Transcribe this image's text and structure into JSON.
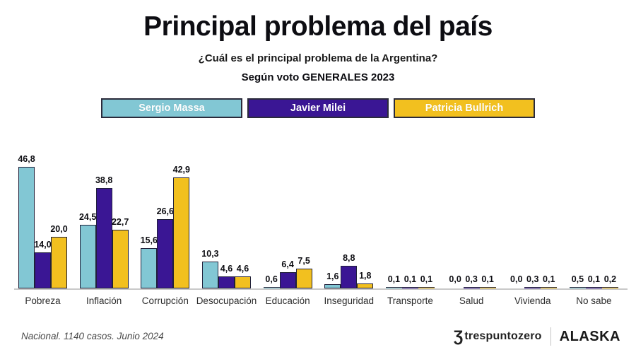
{
  "header": {
    "title": "Principal problema del país",
    "subtitle": "¿Cuál es el principal problema de la Argentina?",
    "filter_label": "Según voto GENERALES 2023"
  },
  "legend": [
    {
      "label": "Sergio Massa",
      "color": "#82c7d4"
    },
    {
      "label": "Javier Milei",
      "color": "#3a1694"
    },
    {
      "label": "Patricia Bullrich",
      "color": "#f2c01f"
    }
  ],
  "chart_data": {
    "type": "bar",
    "title": "Principal problema del país",
    "categories": [
      "Pobreza",
      "Inflación",
      "Corrupción",
      "Desocupación",
      "Educación",
      "Inseguridad",
      "Transporte",
      "Salud",
      "Vivienda",
      "No sabe"
    ],
    "series": [
      {
        "name": "Sergio Massa",
        "color": "#82c7d4",
        "values": [
          46.8,
          24.5,
          15.6,
          10.3,
          0.6,
          1.6,
          0.1,
          0.0,
          0.0,
          0.5
        ]
      },
      {
        "name": "Javier Milei",
        "color": "#3a1694",
        "values": [
          14.0,
          38.8,
          26.6,
          4.6,
          6.4,
          8.8,
          0.1,
          0.3,
          0.3,
          0.1
        ]
      },
      {
        "name": "Patricia Bullrich",
        "color": "#f2c01f",
        "values": [
          20.0,
          22.7,
          42.9,
          4.6,
          7.5,
          1.8,
          0.1,
          0.1,
          0.1,
          0.2
        ]
      }
    ],
    "value_label_format": "comma-decimal-1",
    "xlabel": "",
    "ylabel": "",
    "ylim": [
      0,
      50
    ],
    "grid": false,
    "legend_position": "top",
    "bar_border_color": "#20203a",
    "axis_line_color": "#c9c9c9"
  },
  "footer": {
    "note": "Nacional. 1140 casos. Junio 2024",
    "logo_trespuntozero_glyph": "Ʒ",
    "logo_trespuntozero": "trespuntozero",
    "logo_alaska": "ALASKA"
  }
}
